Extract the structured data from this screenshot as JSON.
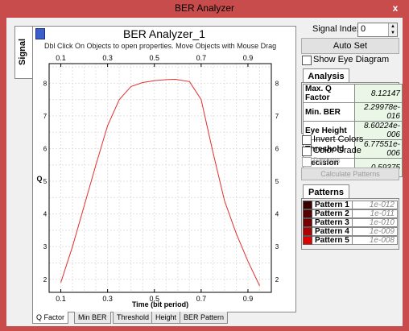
{
  "window": {
    "title": "BER Analyzer",
    "close_glyph": "x"
  },
  "left_tab": "Signal",
  "plot": {
    "title": "BER Analyzer_1",
    "hint": "Dbl Click On Objects to open properties.  Move Objects with Mouse Drag",
    "xlabel": "Time (bit period)",
    "ylabel": "Q",
    "curve_color": "#e03030"
  },
  "chart_data": {
    "type": "line",
    "title": "BER Analyzer_1",
    "xlabel": "Time (bit period)",
    "ylabel": "Q",
    "xlim": [
      0.05,
      1.0
    ],
    "ylim": [
      1.6,
      8.6
    ],
    "xticks": [
      0.1,
      0.3,
      0.5,
      0.7,
      0.9
    ],
    "yticks": [
      2,
      3,
      4,
      5,
      6,
      7,
      8
    ],
    "grid": true,
    "series": [
      {
        "x": [
          0.1,
          0.15,
          0.2,
          0.25,
          0.3,
          0.35,
          0.4,
          0.45,
          0.5,
          0.55,
          0.59,
          0.65,
          0.7,
          0.75,
          0.8,
          0.85,
          0.9,
          0.95
        ],
        "values": [
          1.9,
          3.0,
          4.25,
          5.5,
          6.7,
          7.5,
          7.9,
          8.02,
          8.08,
          8.11,
          8.12,
          8.05,
          7.5,
          5.9,
          4.4,
          3.4,
          2.55,
          1.8
        ]
      }
    ]
  },
  "bottom_tabs": [
    "Q Factor",
    "Min BER",
    "Threshold",
    "Height",
    "BER Pattern"
  ],
  "controls": {
    "signal_index_label": "Signal Index:",
    "signal_index_value": "0",
    "auto_set": "Auto Set",
    "show_eye": "Show Eye Diagram"
  },
  "analysis": {
    "tab": "Analysis",
    "rows": [
      {
        "k": "Max. Q Factor",
        "v": "8.12147"
      },
      {
        "k": "Min. BER",
        "v": "2.29978e-016"
      },
      {
        "k": "Eye Height",
        "v": "8.60224e-006"
      },
      {
        "k": "Threshold",
        "v": "6.77551e-006"
      },
      {
        "k": "Decision Inst.",
        "v": "0.59375"
      }
    ]
  },
  "options": {
    "invert": "Invert Colors",
    "grade": "Color Grade",
    "patterns": "Patterns",
    "calc": "Calculate Patterns"
  },
  "patterns": {
    "tab": "Patterns",
    "rows": [
      {
        "name": "Pattern 1",
        "value": "1e-012",
        "color": "#3a0000"
      },
      {
        "name": "Pattern 2",
        "value": "1e-011",
        "color": "#5a0000"
      },
      {
        "name": "Pattern 3",
        "value": "1e-010",
        "color": "#7a0000"
      },
      {
        "name": "Pattern 4",
        "value": "1e-009",
        "color": "#b00000"
      },
      {
        "name": "Pattern 5",
        "value": "1e-008",
        "color": "#e00000"
      }
    ]
  }
}
